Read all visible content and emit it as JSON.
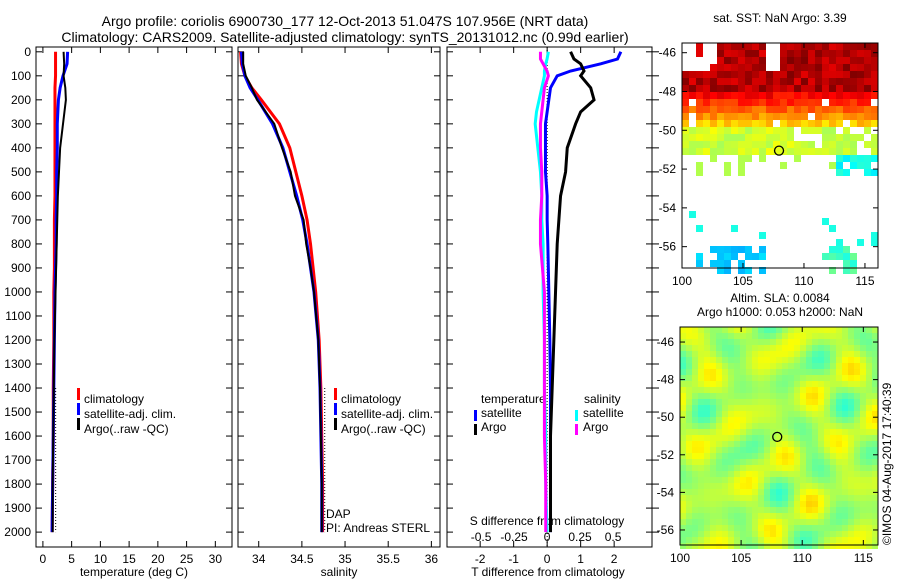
{
  "title": {
    "line1": "Argo profile: coriolis 6900730_177 12-Oct-2013 51.047S 107.956E (NRT data)",
    "line2": "Climatology: CARS2009. Satellite-adjusted climatology: synTS_20131012.nc (0.99d earlier)"
  },
  "colors": {
    "climatology": "#ff0000",
    "satellite": "#0000ff",
    "argo": "#000000",
    "sal_satellite": "#00ffff",
    "sal_argo": "#ff00ff"
  },
  "chart_data": [
    {
      "type": "line",
      "id": "temperature",
      "xlabel": "temperature (deg C)",
      "ylabel": "",
      "xlim": [
        -1.2,
        32.9
      ],
      "ylim": [
        2062,
        -20
      ],
      "xticks": [
        0,
        5,
        10,
        15,
        20,
        25,
        30
      ],
      "yticks": [
        0,
        100,
        200,
        300,
        400,
        500,
        600,
        700,
        800,
        900,
        1000,
        1100,
        1200,
        1300,
        1400,
        1500,
        1600,
        1700,
        1800,
        1900,
        2000
      ],
      "depth": [
        0,
        50,
        100,
        150,
        200,
        300,
        400,
        500,
        600,
        700,
        800,
        900,
        1000,
        1200,
        1400,
        1600,
        1800,
        2000
      ],
      "series": [
        {
          "name": "climatology",
          "color": "#ff0000",
          "values": [
            2.2,
            2.2,
            2.2,
            2.1,
            2.1,
            2.1,
            2.1,
            2.1,
            2.1,
            2.0,
            2.0,
            2.0,
            1.9,
            1.9,
            1.8,
            1.8,
            1.7,
            1.6
          ]
        },
        {
          "name": "satellite-adj. clim.",
          "color": "#0000ff",
          "values": [
            4.3,
            4.2,
            3.5,
            3.0,
            2.7,
            2.5,
            2.5,
            2.4,
            2.4,
            2.3,
            2.3,
            2.2,
            2.1,
            2.0,
            1.9,
            1.8,
            1.7,
            1.6
          ]
        },
        {
          "name": "Argo(..raw -QC)",
          "color": "#000000",
          "values": [
            3.6,
            3.7,
            3.6,
            3.9,
            4.0,
            3.5,
            3.0,
            2.8,
            2.6,
            2.5,
            2.4,
            2.3,
            2.2,
            2.0,
            1.9,
            1.8,
            1.7,
            1.7
          ]
        }
      ],
      "legend": [
        "climatology",
        "satellite-adj. clim.",
        "Argo(..raw -QC)"
      ]
    },
    {
      "type": "line",
      "id": "salinity",
      "xlabel": "salinity",
      "xlim": [
        33.76,
        36.1
      ],
      "ylim": [
        2062,
        -20
      ],
      "xticks": [
        34,
        34.5,
        35,
        35.5,
        36
      ],
      "depth": [
        0,
        50,
        100,
        150,
        200,
        300,
        400,
        500,
        600,
        700,
        800,
        900,
        1000,
        1200,
        1400,
        1600,
        1800,
        2000
      ],
      "series": [
        {
          "name": "climatology",
          "color": "#ff0000",
          "values": [
            33.79,
            33.8,
            33.84,
            33.92,
            34.03,
            34.24,
            34.36,
            34.43,
            34.5,
            34.56,
            34.6,
            34.63,
            34.66,
            34.7,
            34.72,
            34.73,
            34.74,
            34.74
          ]
        },
        {
          "name": "satellite-adj. clim.",
          "color": "#0000ff",
          "values": [
            33.8,
            33.81,
            33.84,
            33.9,
            33.99,
            34.16,
            34.28,
            34.36,
            34.44,
            34.51,
            34.56,
            34.6,
            34.64,
            34.69,
            34.71,
            34.72,
            34.73,
            34.73
          ]
        },
        {
          "name": "Argo(..raw -QC)",
          "color": "#000000",
          "values": [
            33.82,
            33.82,
            33.85,
            33.92,
            33.98,
            34.18,
            34.27,
            34.37,
            34.42,
            34.52,
            34.55,
            34.6,
            34.64,
            34.69,
            34.71,
            34.72,
            34.73,
            34.73
          ]
        }
      ],
      "legend": [
        "climatology",
        "satellite-adj. clim.",
        "Argo(..raw -QC)"
      ],
      "annotations": [
        "DAP",
        "PI: Andreas STERL"
      ]
    },
    {
      "type": "line",
      "id": "difference",
      "xlabel": "T difference from climatology",
      "x2label": "S difference from climatology",
      "xlim": [
        -2.99,
        3.13
      ],
      "x2lim": [
        -0.758,
        0.795
      ],
      "ylim": [
        2062,
        -20
      ],
      "xticks": [
        -2,
        -1,
        0,
        1,
        2
      ],
      "x2ticks": [
        "-0.5",
        "-0.25",
        "0",
        "0.25",
        "0.5"
      ],
      "x2tick_values": [
        -0.5,
        -0.25,
        0,
        0.25,
        0.5
      ],
      "depth": [
        0,
        30,
        50,
        80,
        100,
        150,
        200,
        250,
        300,
        400,
        500,
        600,
        700,
        800,
        1000,
        1200,
        1400,
        1600,
        1800,
        2000
      ],
      "series": [
        {
          "name": "temperature satellite",
          "axis": "T",
          "color": "#0000ff",
          "values": [
            2.2,
            2.1,
            1.6,
            0.7,
            0.3,
            0.1,
            0.05,
            0,
            -0.05,
            -0.05,
            -0.05,
            0,
            0,
            0.02,
            0.05,
            0.08,
            0.1,
            0.1,
            0.1,
            0.1
          ]
        },
        {
          "name": "temperature Argo",
          "axis": "T",
          "color": "#000000",
          "values": [
            0.7,
            0.8,
            1.0,
            1.1,
            1.0,
            1.3,
            1.4,
            1.0,
            0.85,
            0.6,
            0.55,
            0.4,
            0.35,
            0.3,
            0.25,
            0.2,
            0.15,
            0.1,
            0.1,
            0.1
          ]
        },
        {
          "name": "salinity satellite",
          "axis": "S",
          "color": "#00ffff",
          "values": [
            0.01,
            0.0,
            -0.01,
            -0.02,
            -0.02,
            -0.04,
            -0.06,
            -0.08,
            -0.09,
            -0.07,
            -0.05,
            -0.04,
            -0.04,
            -0.03,
            -0.03,
            -0.02,
            -0.02,
            -0.01,
            -0.01,
            0.0
          ]
        },
        {
          "name": "salinity Argo",
          "axis": "S",
          "color": "#ff00ff",
          "values": [
            -0.05,
            -0.05,
            -0.03,
            0.0,
            0.01,
            -0.02,
            -0.03,
            -0.04,
            -0.05,
            -0.05,
            -0.04,
            -0.04,
            -0.05,
            -0.05,
            -0.02,
            -0.02,
            -0.02,
            -0.02,
            -0.01,
            -0.01
          ]
        }
      ],
      "legend": {
        "temperature_title": "temperature",
        "salinity_title": "salinity",
        "items": [
          "satellite",
          "Argo",
          "satellite",
          "Argo"
        ]
      }
    },
    {
      "type": "heatmap",
      "id": "sst-map",
      "title": "sat. SST: NaN Argo: 3.39",
      "xlim": [
        100,
        116.07
      ],
      "ylim": [
        -57.1,
        -45.5
      ],
      "xticks": [
        100,
        105,
        110,
        115
      ],
      "yticks": [
        -46,
        -48,
        -50,
        -52,
        -54,
        -56
      ],
      "marker": {
        "lon": 107.956,
        "lat": -51.047
      }
    },
    {
      "type": "heatmap",
      "id": "sla-map",
      "title1": "Altim. SLA: 0.0084",
      "title2": "Argo h1000: 0.053 h2000: NaN",
      "xlim": [
        100,
        116.2
      ],
      "ylim": [
        -56.8,
        -45.2
      ],
      "xticks": [
        100,
        105,
        110,
        115
      ],
      "yticks": [
        -46,
        -48,
        -50,
        -52,
        -54,
        -56
      ],
      "marker": {
        "lon": 107.956,
        "lat": -51.047
      }
    }
  ],
  "stamp": "©IMOS 04-Aug-2017 17:40:39"
}
